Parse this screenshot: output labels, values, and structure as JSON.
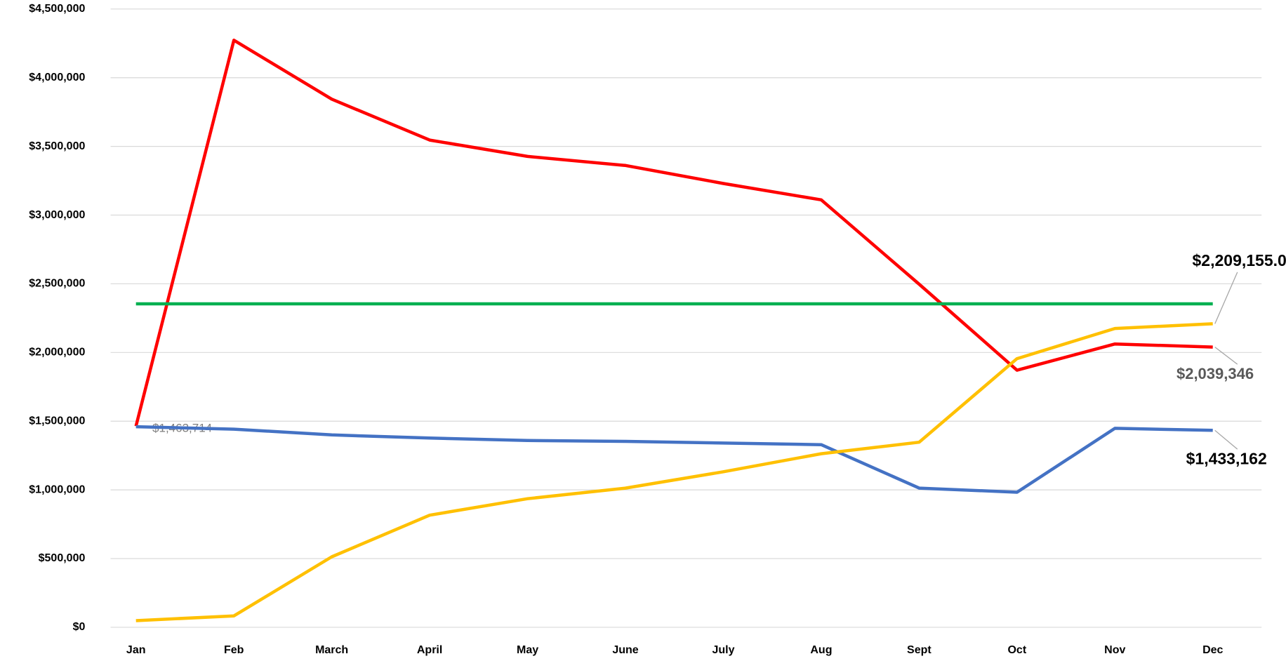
{
  "chart_data": {
    "type": "line",
    "categories": [
      "Jan",
      "Feb",
      "March",
      "April",
      "May",
      "June",
      "July",
      "Aug",
      "Sept",
      "Oct",
      "Nov",
      "Dec"
    ],
    "series": [
      {
        "color": "#ff0000",
        "values": [
          1463714,
          4273000,
          3844000,
          3546000,
          3427000,
          3361000,
          3230000,
          3111000,
          2497000,
          1871000,
          2062000,
          2039346
        ],
        "value_labels": [
          "$1,463,714",
          null,
          null,
          null,
          null,
          null,
          null,
          null,
          null,
          null,
          null,
          "$2,039,346"
        ]
      },
      {
        "color": "#4472c4",
        "values": [
          1460000,
          1442000,
          1400000,
          1377000,
          1359000,
          1353000,
          1341000,
          1329000,
          1013000,
          983000,
          1448000,
          1433162
        ],
        "value_labels": [
          null,
          null,
          null,
          null,
          null,
          null,
          null,
          null,
          null,
          null,
          null,
          "$1,433,162"
        ]
      },
      {
        "color": "#ffc000",
        "values": [
          48000,
          83000,
          513000,
          816000,
          936000,
          1013000,
          1132000,
          1263000,
          1347000,
          1955000,
          2175000,
          2209155
        ],
        "value_labels": [
          null,
          null,
          null,
          null,
          null,
          null,
          null,
          null,
          null,
          null,
          null,
          "$2,209,155.00"
        ]
      },
      {
        "color": "#00b050",
        "values": [
          2354000,
          2354000,
          2354000,
          2354000,
          2354000,
          2354000,
          2354000,
          2354000,
          2354000,
          2354000,
          2354000,
          2354000
        ]
      }
    ],
    "ylim": [
      0,
      4500000
    ],
    "yticks": [
      {
        "value": 0,
        "label": "$0"
      },
      {
        "value": 500000,
        "label": "$500,000"
      },
      {
        "value": 1000000,
        "label": "$1,000,000"
      },
      {
        "value": 1500000,
        "label": "$1,500,000"
      },
      {
        "value": 2000000,
        "label": "$2,000,000"
      },
      {
        "value": 2500000,
        "label": "$2,500,000"
      },
      {
        "value": 3000000,
        "label": "$3,000,000"
      },
      {
        "value": 3500000,
        "label": "$3,500,000"
      },
      {
        "value": 4000000,
        "label": "$4,000,000"
      },
      {
        "value": 4500000,
        "label": "$4,500,000"
      }
    ],
    "grid": true
  }
}
